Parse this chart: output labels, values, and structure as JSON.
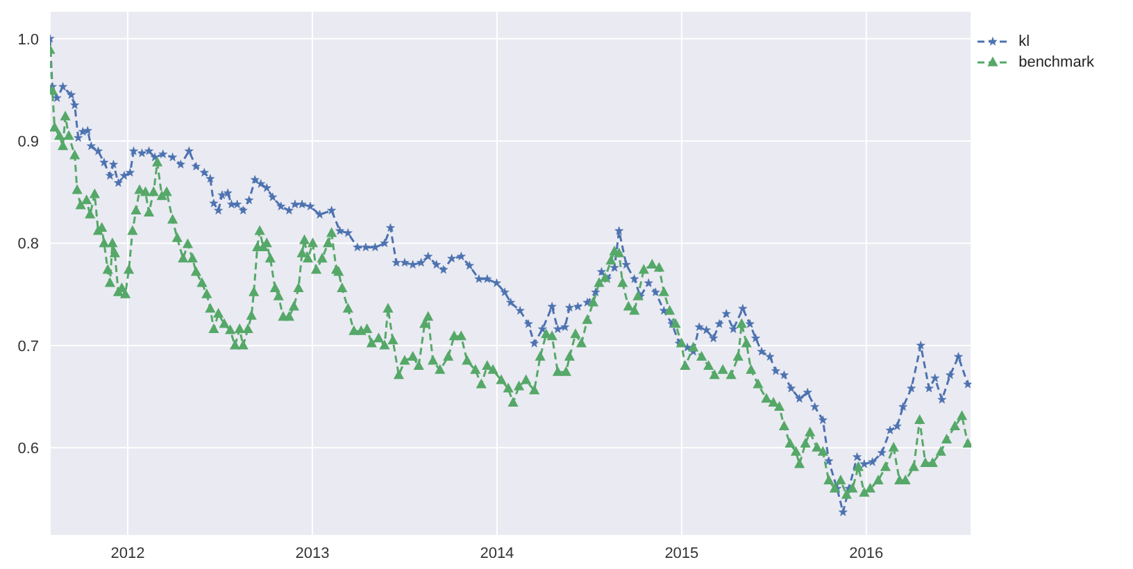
{
  "chart_data": {
    "type": "line",
    "legend": "top right",
    "grid": true,
    "line_style": "dashed",
    "xlim": [
      2011.579,
      2016.569
    ],
    "xticks": [
      2012,
      2013,
      2014,
      2015,
      2016
    ],
    "ylim": [
      0.514,
      1.027
    ],
    "yticks": [
      0.6,
      0.7,
      0.8,
      0.9,
      {
        "value": 1,
        "label": "1.0"
      }
    ],
    "series": [
      {
        "name": "kl",
        "color": "#4c72b0",
        "marker": "star",
        "x": [
          2011.579,
          2011.592,
          2011.617,
          2011.649,
          2011.694,
          2011.713,
          2011.732,
          2011.757,
          2011.783,
          2011.802,
          2011.84,
          2011.872,
          2011.904,
          2011.923,
          2011.949,
          2011.981,
          2012.013,
          2012.032,
          2012.077,
          2012.115,
          2012.147,
          2012.191,
          2012.243,
          2012.287,
          2012.332,
          2012.37,
          2012.415,
          2012.447,
          2012.466,
          2012.491,
          2012.511,
          2012.542,
          2012.562,
          2012.593,
          2012.625,
          2012.657,
          2012.689,
          2012.721,
          2012.753,
          2012.785,
          2012.83,
          2012.874,
          2012.906,
          2012.944,
          2012.989,
          2013.04,
          2013.104,
          2013.149,
          2013.193,
          2013.244,
          2013.289,
          2013.34,
          2013.391,
          2013.423,
          2013.455,
          2013.5,
          2013.544,
          2013.589,
          2013.627,
          2013.672,
          2013.71,
          2013.755,
          2013.806,
          2013.851,
          2013.902,
          2013.947,
          2013.998,
          2014.042,
          2014.074,
          2014.125,
          2014.17,
          2014.202,
          2014.246,
          2014.298,
          2014.329,
          2014.368,
          2014.393,
          2014.438,
          2014.489,
          2014.534,
          2014.566,
          2014.597,
          2014.636,
          2014.661,
          2014.7,
          2014.744,
          2014.776,
          2014.821,
          2014.859,
          2014.904,
          2014.948,
          2014.987,
          2015.031,
          2015.063,
          2015.095,
          2015.134,
          2015.172,
          2015.204,
          2015.242,
          2015.28,
          2015.331,
          2015.37,
          2015.401,
          2015.433,
          2015.478,
          2015.51,
          2015.555,
          2015.593,
          2015.638,
          2015.682,
          2015.721,
          2015.765,
          2015.797,
          2015.842,
          2015.874,
          2015.906,
          2015.95,
          2015.989,
          2016.033,
          2016.084,
          2016.129,
          2016.167,
          2016.199,
          2016.244,
          2016.295,
          2016.34,
          2016.372,
          2016.41,
          2016.454,
          2016.499,
          2016.55
        ],
        "values": [
          1.0,
          0.953,
          0.942,
          0.953,
          0.945,
          0.935,
          0.903,
          0.909,
          0.91,
          0.895,
          0.89,
          0.879,
          0.866,
          0.877,
          0.859,
          0.866,
          0.869,
          0.89,
          0.888,
          0.89,
          0.884,
          0.887,
          0.884,
          0.877,
          0.89,
          0.875,
          0.869,
          0.863,
          0.839,
          0.832,
          0.847,
          0.849,
          0.838,
          0.838,
          0.832,
          0.842,
          0.862,
          0.858,
          0.854,
          0.845,
          0.836,
          0.832,
          0.838,
          0.838,
          0.836,
          0.828,
          0.832,
          0.812,
          0.81,
          0.796,
          0.796,
          0.796,
          0.8,
          0.815,
          0.781,
          0.781,
          0.779,
          0.781,
          0.787,
          0.779,
          0.774,
          0.785,
          0.787,
          0.778,
          0.765,
          0.765,
          0.761,
          0.752,
          0.742,
          0.734,
          0.721,
          0.702,
          0.716,
          0.738,
          0.716,
          0.718,
          0.737,
          0.738,
          0.742,
          0.752,
          0.772,
          0.765,
          0.776,
          0.812,
          0.779,
          0.765,
          0.748,
          0.761,
          0.752,
          0.734,
          0.721,
          0.702,
          0.698,
          0.694,
          0.718,
          0.715,
          0.707,
          0.721,
          0.731,
          0.716,
          0.736,
          0.721,
          0.707,
          0.694,
          0.689,
          0.675,
          0.671,
          0.658,
          0.648,
          0.654,
          0.64,
          0.627,
          0.587,
          0.56,
          0.537,
          0.56,
          0.591,
          0.584,
          0.586,
          0.595,
          0.617,
          0.621,
          0.64,
          0.658,
          0.7,
          0.658,
          0.668,
          0.647,
          0.671,
          0.689,
          0.662
        ]
      },
      {
        "name": "benchmark",
        "color": "#55a868",
        "marker": "triangle",
        "x": [
          2011.579,
          2011.592,
          2011.604,
          2011.63,
          2011.649,
          2011.662,
          2011.681,
          2011.713,
          2011.726,
          2011.745,
          2011.777,
          2011.796,
          2011.821,
          2011.84,
          2011.86,
          2011.872,
          2011.892,
          2011.904,
          2011.917,
          2011.93,
          2011.949,
          2011.968,
          2011.987,
          2012.006,
          2012.026,
          2012.045,
          2012.064,
          2012.096,
          2012.115,
          2012.14,
          2012.16,
          2012.185,
          2012.211,
          2012.243,
          2012.268,
          2012.3,
          2012.325,
          2012.351,
          2012.37,
          2012.402,
          2012.428,
          2012.447,
          2012.466,
          2012.491,
          2012.523,
          2012.555,
          2012.581,
          2012.606,
          2012.625,
          2012.651,
          2012.67,
          2012.683,
          2012.702,
          2012.715,
          2012.734,
          2012.753,
          2012.772,
          2012.798,
          2012.817,
          2012.842,
          2012.874,
          2012.9,
          2012.925,
          2012.944,
          2012.957,
          2012.976,
          2013.002,
          2013.021,
          2013.053,
          2013.085,
          2013.104,
          2013.13,
          2013.142,
          2013.161,
          2013.193,
          2013.225,
          2013.264,
          2013.296,
          2013.321,
          2013.359,
          2013.391,
          2013.41,
          2013.436,
          2013.468,
          2013.5,
          2013.544,
          2013.576,
          2013.608,
          2013.627,
          2013.653,
          2013.691,
          2013.736,
          2013.768,
          2013.806,
          2013.838,
          2013.883,
          2013.915,
          2013.947,
          2013.978,
          2014.023,
          2014.061,
          2014.087,
          2014.119,
          2014.157,
          2014.202,
          2014.234,
          2014.266,
          2014.298,
          2014.329,
          2014.374,
          2014.393,
          2014.425,
          2014.457,
          2014.489,
          2014.521,
          2014.553,
          2014.585,
          2014.617,
          2014.636,
          2014.661,
          2014.68,
          2014.712,
          2014.744,
          2014.763,
          2014.795,
          2014.84,
          2014.878,
          2014.904,
          2014.935,
          2014.967,
          2014.999,
          2015.019,
          2015.063,
          2015.108,
          2015.146,
          2015.178,
          2015.223,
          2015.268,
          2015.306,
          2015.325,
          2015.351,
          2015.376,
          2015.414,
          2015.459,
          2015.497,
          2015.529,
          2015.555,
          2015.587,
          2015.619,
          2015.638,
          2015.67,
          2015.695,
          2015.733,
          2015.765,
          2015.797,
          2015.829,
          2015.861,
          2015.893,
          2015.925,
          2015.957,
          2015.989,
          2016.021,
          2016.065,
          2016.104,
          2016.148,
          2016.18,
          2016.212,
          2016.257,
          2016.289,
          2016.32,
          2016.359,
          2016.404,
          2016.435,
          2016.48,
          2016.518,
          2016.55
        ],
        "values": [
          0.989,
          0.949,
          0.913,
          0.905,
          0.895,
          0.924,
          0.905,
          0.886,
          0.852,
          0.837,
          0.842,
          0.828,
          0.848,
          0.812,
          0.815,
          0.8,
          0.774,
          0.761,
          0.8,
          0.79,
          0.752,
          0.756,
          0.75,
          0.774,
          0.812,
          0.832,
          0.852,
          0.85,
          0.83,
          0.85,
          0.879,
          0.846,
          0.85,
          0.823,
          0.805,
          0.785,
          0.799,
          0.785,
          0.772,
          0.761,
          0.75,
          0.736,
          0.716,
          0.731,
          0.721,
          0.715,
          0.7,
          0.716,
          0.7,
          0.716,
          0.729,
          0.752,
          0.796,
          0.812,
          0.796,
          0.8,
          0.785,
          0.756,
          0.748,
          0.728,
          0.728,
          0.738,
          0.756,
          0.79,
          0.803,
          0.785,
          0.8,
          0.774,
          0.785,
          0.8,
          0.81,
          0.774,
          0.772,
          0.756,
          0.736,
          0.714,
          0.714,
          0.716,
          0.702,
          0.707,
          0.7,
          0.736,
          0.705,
          0.671,
          0.685,
          0.689,
          0.68,
          0.721,
          0.728,
          0.685,
          0.676,
          0.689,
          0.709,
          0.709,
          0.685,
          0.676,
          0.662,
          0.68,
          0.676,
          0.666,
          0.658,
          0.644,
          0.66,
          0.666,
          0.656,
          0.689,
          0.711,
          0.709,
          0.674,
          0.674,
          0.689,
          0.711,
          0.702,
          0.725,
          0.742,
          0.761,
          0.766,
          0.783,
          0.792,
          0.79,
          0.761,
          0.738,
          0.734,
          0.748,
          0.774,
          0.779,
          0.776,
          0.752,
          0.734,
          0.721,
          0.702,
          0.68,
          0.698,
          0.689,
          0.68,
          0.671,
          0.676,
          0.671,
          0.689,
          0.721,
          0.702,
          0.676,
          0.662,
          0.648,
          0.644,
          0.64,
          0.621,
          0.604,
          0.596,
          0.584,
          0.604,
          0.615,
          0.6,
          0.596,
          0.568,
          0.56,
          0.568,
          0.554,
          0.56,
          0.581,
          0.556,
          0.56,
          0.568,
          0.581,
          0.6,
          0.568,
          0.568,
          0.581,
          0.627,
          0.585,
          0.585,
          0.596,
          0.608,
          0.621,
          0.631,
          0.604
        ]
      }
    ]
  }
}
